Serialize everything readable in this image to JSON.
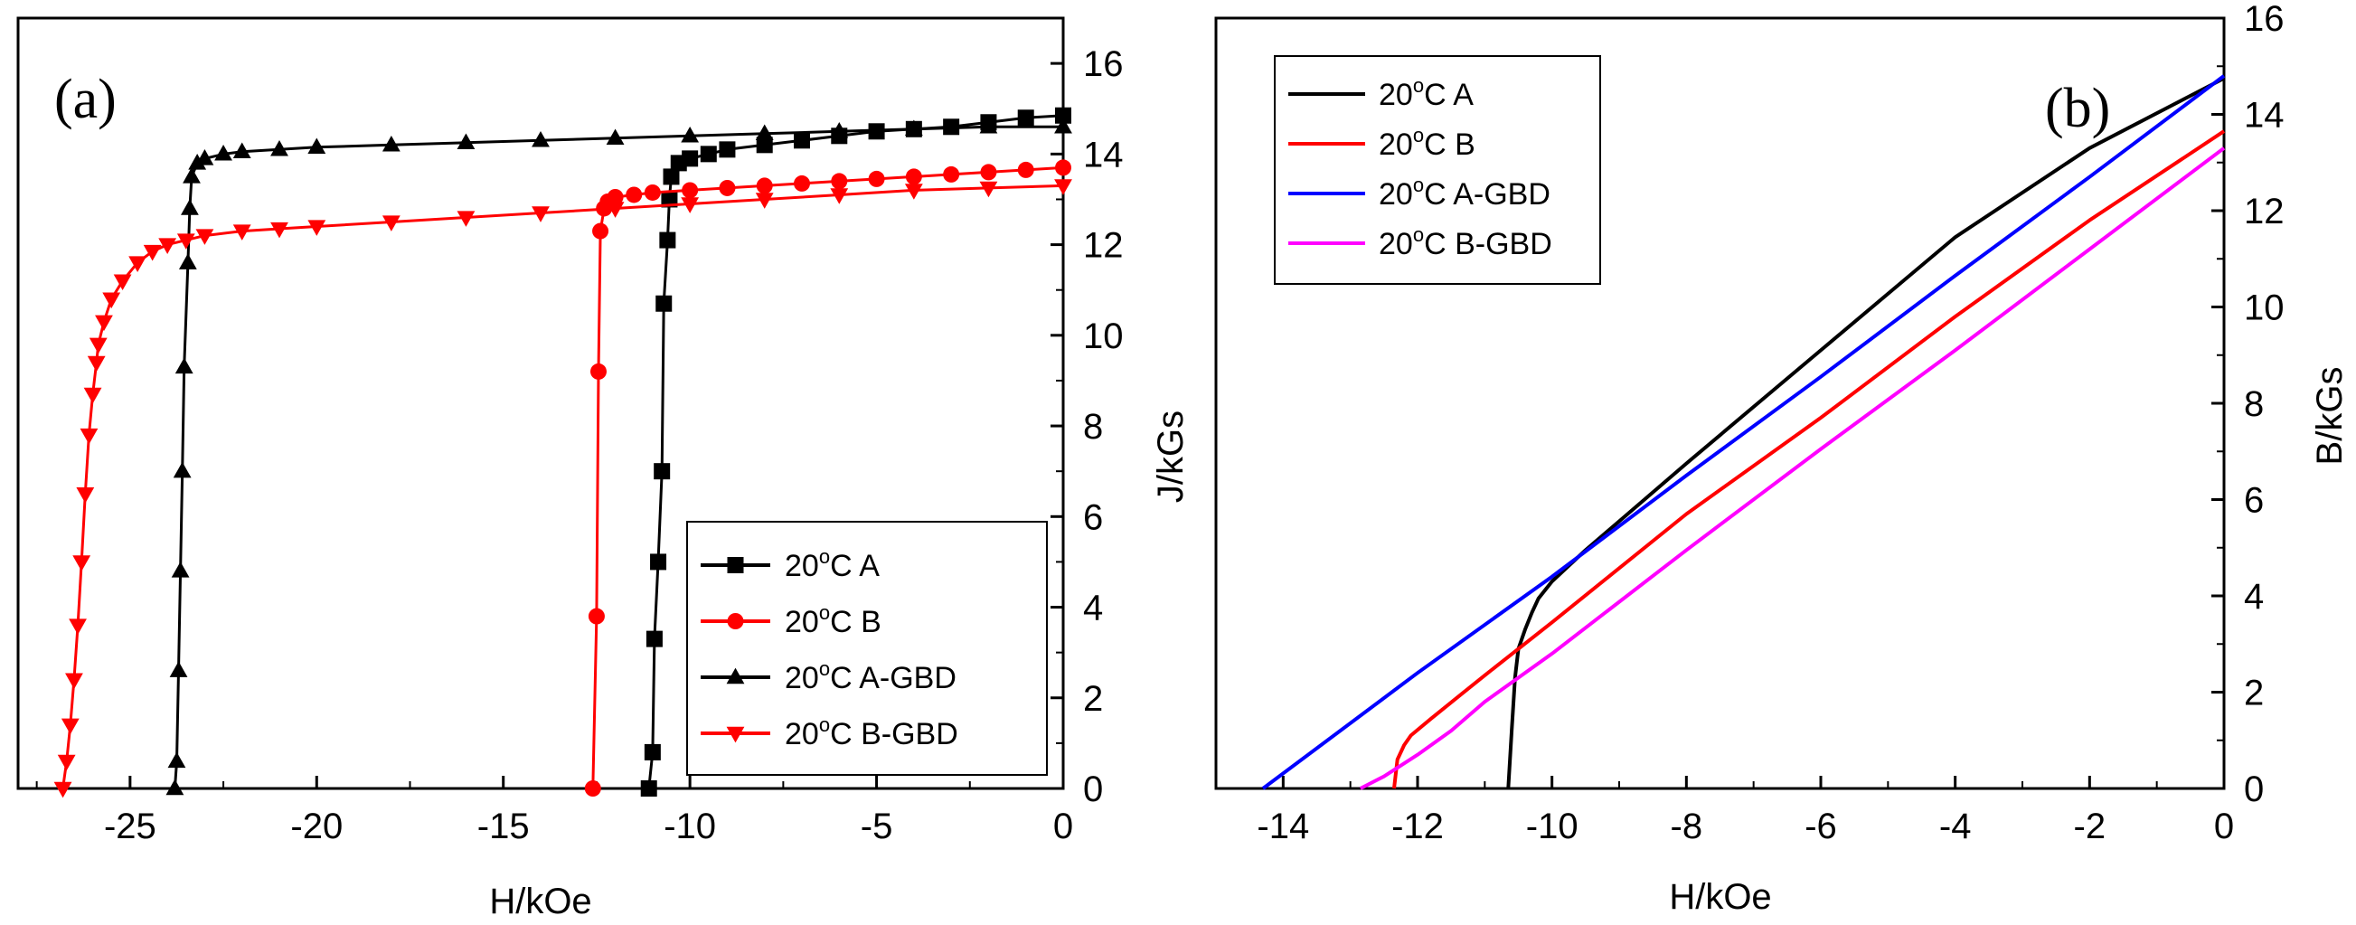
{
  "chart_data": [
    {
      "panel": "(a)",
      "type": "line",
      "xlabel": "H/kOe",
      "ylabel": "J/kGs",
      "xlim": [
        -28,
        0
      ],
      "ylim": [
        0,
        17
      ],
      "xticks": [
        -25,
        -20,
        -15,
        -10,
        -5,
        0
      ],
      "yticks": [
        0,
        2,
        4,
        6,
        8,
        10,
        12,
        14,
        16
      ],
      "ytick_side": "right",
      "legend": "bottom-right",
      "series": [
        {
          "name": "20°C A",
          "name_parts": [
            "20",
            "o",
            "C A"
          ],
          "color": "#000000",
          "marker": "square",
          "x": [
            -11.1,
            -11.0,
            -10.95,
            -10.85,
            -10.75,
            -10.7,
            -10.6,
            -10.55,
            -10.5,
            -10.3,
            -10.0,
            -9.5,
            -9,
            -8,
            -7,
            -6,
            -5,
            -4,
            -3,
            -2,
            -1,
            0
          ],
          "y": [
            0,
            0.8,
            3.3,
            5.0,
            7.0,
            10.7,
            12.1,
            13.0,
            13.5,
            13.8,
            13.9,
            14.0,
            14.1,
            14.2,
            14.3,
            14.4,
            14.5,
            14.55,
            14.6,
            14.7,
            14.8,
            14.85
          ]
        },
        {
          "name": "20°C B",
          "name_parts": [
            "20",
            "o",
            "C B"
          ],
          "color": "#ff0000",
          "marker": "circle",
          "x": [
            -12.6,
            -12.5,
            -12.45,
            -12.4,
            -12.3,
            -12.2,
            -12.0,
            -11.5,
            -11,
            -10,
            -9,
            -8,
            -7,
            -6,
            -5,
            -4,
            -3,
            -2,
            -1,
            0
          ],
          "y": [
            0,
            3.8,
            9.2,
            12.3,
            12.8,
            12.95,
            13.05,
            13.1,
            13.15,
            13.2,
            13.25,
            13.3,
            13.35,
            13.4,
            13.45,
            13.5,
            13.55,
            13.6,
            13.65,
            13.7
          ]
        },
        {
          "name": "20°C A-GBD",
          "name_parts": [
            "20",
            "o",
            "C A-GBD"
          ],
          "color": "#000000",
          "marker": "triangle-up",
          "x": [
            -23.8,
            -23.75,
            -23.7,
            -23.65,
            -23.6,
            -23.55,
            -23.45,
            -23.4,
            -23.35,
            -23.2,
            -23.0,
            -22.5,
            -22,
            -21,
            -20,
            -18,
            -16,
            -14,
            -12,
            -10,
            -8,
            -6,
            -4,
            -2,
            0
          ],
          "y": [
            0,
            0.6,
            2.6,
            4.8,
            7.0,
            9.3,
            11.6,
            12.8,
            13.5,
            13.8,
            13.9,
            14.0,
            14.05,
            14.1,
            14.15,
            14.2,
            14.25,
            14.3,
            14.35,
            14.4,
            14.45,
            14.5,
            14.55,
            14.6,
            14.6
          ]
        },
        {
          "name": "20°C B-GBD",
          "name_parts": [
            "20",
            "o",
            "C B-GBD"
          ],
          "color": "#ff0000",
          "marker": "triangle-down",
          "x": [
            -26.8,
            -26.7,
            -26.6,
            -26.5,
            -26.4,
            -26.3,
            -26.2,
            -26.1,
            -26.0,
            -25.9,
            -25.85,
            -25.7,
            -25.5,
            -25.2,
            -24.8,
            -24.4,
            -24.0,
            -23.5,
            -23,
            -22,
            -21,
            -20,
            -18,
            -16,
            -14,
            -12,
            -10,
            -8,
            -6,
            -4,
            -2,
            0
          ],
          "y": [
            0,
            0.6,
            1.4,
            2.4,
            3.6,
            5.0,
            6.5,
            7.8,
            8.7,
            9.4,
            9.8,
            10.3,
            10.8,
            11.2,
            11.6,
            11.85,
            12.0,
            12.1,
            12.2,
            12.3,
            12.35,
            12.4,
            12.5,
            12.6,
            12.7,
            12.8,
            12.9,
            13.0,
            13.1,
            13.2,
            13.25,
            13.3
          ]
        }
      ]
    },
    {
      "panel": "(b)",
      "type": "line",
      "xlabel": "H/kOe",
      "ylabel": "B/kGs",
      "xlim": [
        -15,
        0
      ],
      "ylim": [
        0,
        16
      ],
      "xticks": [
        -14,
        -12,
        -10,
        -8,
        -6,
        -4,
        -2,
        0
      ],
      "yticks": [
        0,
        2,
        4,
        6,
        8,
        10,
        12,
        14,
        16
      ],
      "ytick_side": "right",
      "legend": "top-left",
      "series": [
        {
          "name": "20°C A",
          "name_parts": [
            "20",
            "o",
            "C A"
          ],
          "color": "#000000",
          "x": [
            -10.65,
            -10.6,
            -10.55,
            -10.5,
            -10.4,
            -10.3,
            -10.2,
            -10.0,
            -9.5,
            -9,
            -8,
            -6,
            -4,
            -2,
            0
          ],
          "y": [
            0,
            1.2,
            2.3,
            2.9,
            3.3,
            3.65,
            3.95,
            4.3,
            4.95,
            5.55,
            6.75,
            9.1,
            11.45,
            13.3,
            14.75
          ]
        },
        {
          "name": "20°C B",
          "name_parts": [
            "20",
            "o",
            "C B"
          ],
          "color": "#ff0000",
          "x": [
            -12.35,
            -12.3,
            -12.2,
            -12.1,
            -11.8,
            -11.4,
            -11.0,
            -10,
            -8,
            -6,
            -4,
            -2,
            0
          ],
          "y": [
            0,
            0.6,
            0.9,
            1.1,
            1.45,
            1.9,
            2.35,
            3.45,
            5.7,
            7.7,
            9.8,
            11.8,
            13.65
          ]
        },
        {
          "name": "20°C A-GBD",
          "name_parts": [
            "20",
            "o",
            "C A-GBD"
          ],
          "color": "#0000ff",
          "x": [
            -14.3,
            -12,
            -10,
            -8,
            -6,
            -4,
            -2,
            0
          ],
          "y": [
            0,
            2.4,
            4.4,
            6.5,
            8.55,
            10.65,
            12.7,
            14.8
          ]
        },
        {
          "name": "20°C B-GBD",
          "name_parts": [
            "20",
            "o",
            "C B-GBD"
          ],
          "color": "#ff00ff",
          "x": [
            -12.85,
            -12.5,
            -12.0,
            -11.5,
            -11.0,
            -10,
            -8,
            -6,
            -4,
            -2,
            0
          ],
          "y": [
            0,
            0.25,
            0.7,
            1.2,
            1.8,
            2.8,
            4.95,
            7.05,
            9.1,
            11.2,
            13.3
          ]
        }
      ]
    }
  ]
}
